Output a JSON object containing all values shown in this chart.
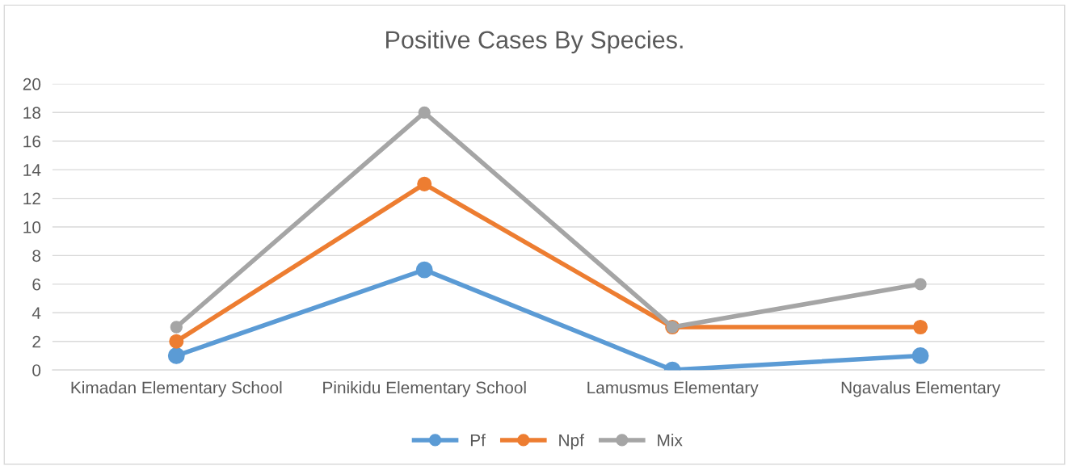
{
  "chart_data": {
    "type": "line",
    "title": "Positive Cases By Species.",
    "categories": [
      "Kimadan Elementary School",
      "Pinikidu Elementary School",
      "Lamusmus Elementary",
      "Ngavalus Elementary"
    ],
    "series": [
      {
        "name": "Pf",
        "color": "#5b9bd5",
        "values": [
          1,
          7,
          0,
          1
        ]
      },
      {
        "name": "Npf",
        "color": "#ed7d31",
        "values": [
          2,
          13,
          3,
          3
        ]
      },
      {
        "name": "Mix",
        "color": "#a5a5a5",
        "values": [
          3,
          18,
          3,
          6
        ]
      }
    ],
    "ylim": [
      0,
      20
    ],
    "yticks": [
      0,
      2,
      4,
      6,
      8,
      10,
      12,
      14,
      16,
      18,
      20
    ],
    "grid": "y",
    "legend": "bottom",
    "marker": "circle",
    "line_style": "solid"
  }
}
